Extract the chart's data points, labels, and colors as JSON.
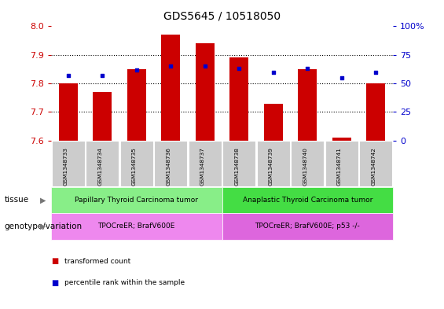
{
  "title": "GDS5645 / 10518050",
  "samples": [
    "GSM1348733",
    "GSM1348734",
    "GSM1348735",
    "GSM1348736",
    "GSM1348737",
    "GSM1348738",
    "GSM1348739",
    "GSM1348740",
    "GSM1348741",
    "GSM1348742"
  ],
  "transformed_count": [
    7.8,
    7.77,
    7.85,
    7.97,
    7.94,
    7.89,
    7.73,
    7.85,
    7.61,
    7.8
  ],
  "percentile_rank": [
    57,
    57,
    62,
    65,
    65,
    63,
    60,
    63,
    55,
    60
  ],
  "ylim_left": [
    7.6,
    8.0
  ],
  "ylim_right": [
    0,
    100
  ],
  "yticks_left": [
    7.6,
    7.7,
    7.8,
    7.9,
    8.0
  ],
  "yticks_right": [
    0,
    25,
    50,
    75,
    100
  ],
  "bar_color": "#cc0000",
  "dot_color": "#0000cc",
  "bar_width": 0.55,
  "tissue_groups": [
    {
      "label": "Papillary Thyroid Carcinoma tumor",
      "n_samples": 5,
      "color": "#88ee88"
    },
    {
      "label": "Anaplastic Thyroid Carcinoma tumor",
      "n_samples": 5,
      "color": "#44dd44"
    }
  ],
  "genotype_groups": [
    {
      "label": "TPOCreER; BrafV600E",
      "n_samples": 5,
      "color": "#ee88ee"
    },
    {
      "label": "TPOCreER; BrafV600E; p53 -/-",
      "n_samples": 5,
      "color": "#dd66dd"
    }
  ],
  "tissue_label": "tissue",
  "genotype_label": "genotype/variation",
  "legend_items": [
    {
      "label": "transformed count",
      "color": "#cc0000"
    },
    {
      "label": "percentile rank within the sample",
      "color": "#0000cc"
    }
  ],
  "tick_label_color_left": "#cc0000",
  "tick_label_color_right": "#0000cc",
  "sample_box_color": "#cccccc"
}
